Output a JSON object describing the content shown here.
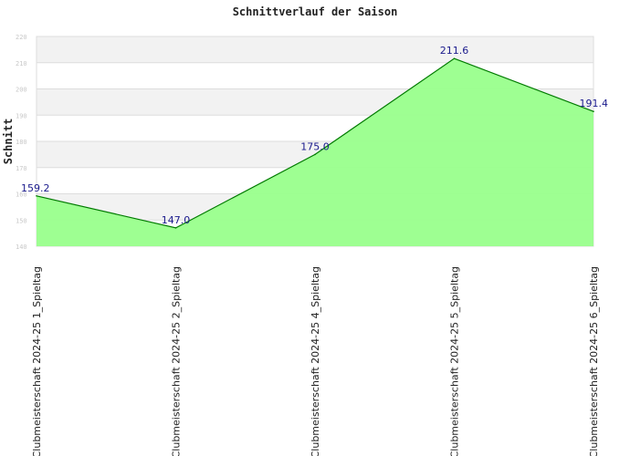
{
  "chart_data": {
    "type": "area",
    "title": "Schnittverlauf der Saison",
    "xlabel": "",
    "ylabel": "Schnitt",
    "categories": [
      "Clubmeisterschaft 2024-25   1_Spieltag",
      "Clubmeisterschaft 2024-25   2_Spieltag",
      "Clubmeisterschaft 2024-25   4_Spieltag",
      "Clubmeisterschaft 2024-25   5_Spieltag",
      "Clubmeisterschaft 2024-25   6_Spieltag"
    ],
    "values": [
      159.2,
      147.0,
      175.0,
      211.6,
      191.4
    ],
    "data_labels": [
      "159.2",
      "147.0",
      "175.0",
      "211.6",
      "191.4"
    ],
    "ylim": [
      140,
      220
    ],
    "y_ticks": [
      140,
      150,
      160,
      170,
      180,
      190,
      200,
      210,
      220
    ],
    "y_tick_labels": [
      "140",
      "150",
      "160",
      "170",
      "180",
      "190",
      "200",
      "210",
      "220"
    ],
    "grid": true,
    "legend": "none",
    "colors": {
      "fill": "#99ff8c",
      "line": "#007a00",
      "band": "#f2f2f2",
      "grid": "#dddddd",
      "data_label": "#1a1a8c",
      "tick_label": "#c8c8c8"
    }
  }
}
